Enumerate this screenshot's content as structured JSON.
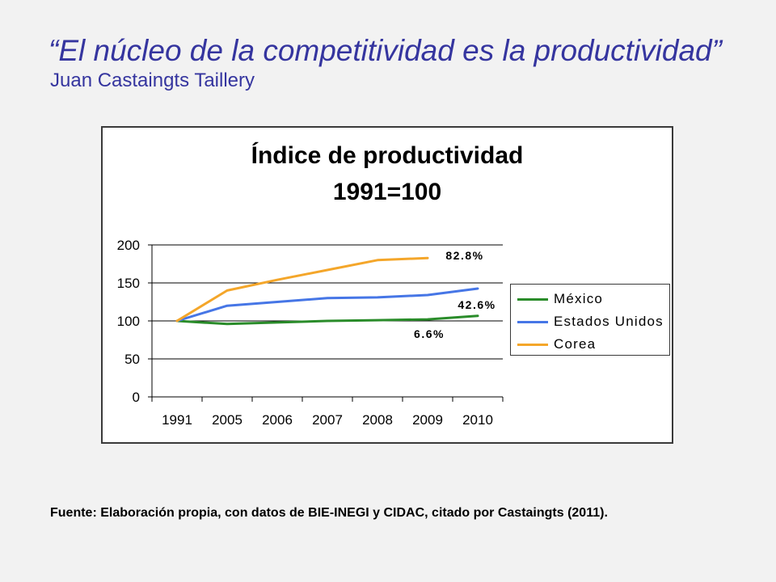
{
  "theme": {
    "background": "#f2f2f2",
    "accent": "#35359f"
  },
  "slide": {
    "title": "“El núcleo de la competitividad es la productividad”",
    "author": "Juan Castaingts Taillery",
    "source_note": "Fuente: Elaboración propia, con datos de BIE-INEGI y CIDAC, citado por Castaingts (2011)."
  },
  "chart_data": {
    "type": "line",
    "title": "Índice de productividad",
    "subtitle": "1991=100",
    "xlabel": "",
    "ylabel": "",
    "categories": [
      "1991",
      "2005",
      "2006",
      "2007",
      "2008",
      "2009",
      "2010"
    ],
    "ylim": [
      0,
      200
    ],
    "yticks": [
      0,
      50,
      100,
      150,
      200
    ],
    "grid": true,
    "legend": "right",
    "series": [
      {
        "name": "México",
        "color": "#2a8c2a",
        "values": [
          100,
          96,
          98,
          100,
          101,
          102,
          106.6
        ]
      },
      {
        "name": "Estados Unidos",
        "color": "#4676e6",
        "values": [
          100,
          120,
          125,
          130,
          131,
          134,
          142.6
        ]
      },
      {
        "name": "Corea",
        "color": "#f4a62a",
        "values": [
          100,
          140,
          154,
          167,
          180,
          182.8,
          null
        ]
      }
    ],
    "data_labels": [
      {
        "series": "Corea",
        "text": "82.8%"
      },
      {
        "series": "Estados Unidos",
        "text": "42.6%"
      },
      {
        "series": "México",
        "text": "6.6%"
      }
    ]
  }
}
